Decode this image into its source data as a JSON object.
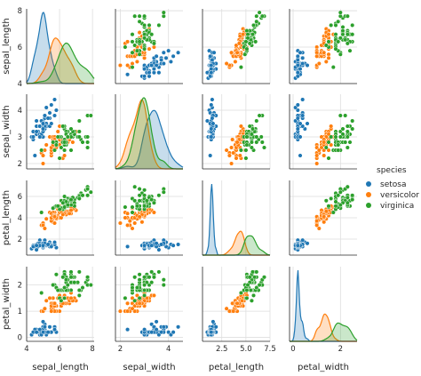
{
  "chart_data": {
    "type": "scatter",
    "title": "",
    "variables": [
      "sepal_length",
      "sepal_width",
      "petal_length",
      "petal_width"
    ],
    "hue": "species",
    "grid": true,
    "diag_kind": "kde",
    "axis_ranges": {
      "sepal_length": [
        4,
        8.1
      ],
      "sepal_width": [
        1.8,
        4.6
      ],
      "petal_length": [
        0.5,
        7.5
      ],
      "petal_width": [
        -0.15,
        2.7
      ]
    },
    "ticks": {
      "sepal_length": [
        "4",
        "6",
        "8"
      ],
      "sepal_width": [
        "2",
        "3",
        "4"
      ],
      "petal_length": [
        "2",
        "4",
        "6"
      ],
      "petal_width": [
        "0",
        "1",
        "2"
      ]
    },
    "x_ticks": {
      "sepal_length": [
        "4",
        "6",
        "8"
      ],
      "sepal_width": [
        "2",
        "4"
      ],
      "petal_length": [
        "2.5",
        "5.0",
        "7.5"
      ],
      "petal_width": [
        "0",
        "2"
      ]
    },
    "legend": {
      "title": "species",
      "placement": "right",
      "entries": [
        {
          "name": "setosa",
          "color": "#1f77b4"
        },
        {
          "name": "versicolor",
          "color": "#ff7f0e"
        },
        {
          "name": "virginica",
          "color": "#2ca02c"
        }
      ]
    },
    "series": [
      {
        "name": "setosa",
        "color": "#1f77b4",
        "points": [
          [
            5.1,
            3.5,
            1.4,
            0.2
          ],
          [
            4.9,
            3.0,
            1.4,
            0.2
          ],
          [
            4.7,
            3.2,
            1.3,
            0.2
          ],
          [
            4.6,
            3.1,
            1.5,
            0.2
          ],
          [
            5.0,
            3.6,
            1.4,
            0.2
          ],
          [
            5.4,
            3.9,
            1.7,
            0.4
          ],
          [
            4.6,
            3.4,
            1.4,
            0.3
          ],
          [
            5.0,
            3.4,
            1.5,
            0.2
          ],
          [
            4.4,
            2.9,
            1.4,
            0.2
          ],
          [
            4.9,
            3.1,
            1.5,
            0.1
          ],
          [
            5.4,
            3.7,
            1.5,
            0.2
          ],
          [
            4.8,
            3.4,
            1.6,
            0.2
          ],
          [
            4.8,
            3.0,
            1.4,
            0.1
          ],
          [
            4.3,
            3.0,
            1.1,
            0.1
          ],
          [
            5.8,
            4.0,
            1.2,
            0.2
          ],
          [
            5.7,
            4.4,
            1.5,
            0.4
          ],
          [
            5.4,
            3.9,
            1.3,
            0.4
          ],
          [
            5.1,
            3.5,
            1.4,
            0.3
          ],
          [
            5.7,
            3.8,
            1.7,
            0.3
          ],
          [
            5.1,
            3.8,
            1.5,
            0.3
          ],
          [
            5.4,
            3.4,
            1.7,
            0.2
          ],
          [
            5.1,
            3.7,
            1.5,
            0.4
          ],
          [
            4.6,
            3.6,
            1.0,
            0.2
          ],
          [
            5.1,
            3.3,
            1.7,
            0.5
          ],
          [
            4.8,
            3.4,
            1.9,
            0.2
          ],
          [
            5.0,
            3.0,
            1.6,
            0.2
          ],
          [
            5.0,
            3.4,
            1.6,
            0.4
          ],
          [
            5.2,
            3.5,
            1.5,
            0.2
          ],
          [
            5.2,
            3.4,
            1.4,
            0.2
          ],
          [
            4.7,
            3.2,
            1.6,
            0.2
          ],
          [
            4.8,
            3.1,
            1.6,
            0.2
          ],
          [
            5.4,
            3.4,
            1.5,
            0.4
          ],
          [
            5.2,
            4.1,
            1.5,
            0.1
          ],
          [
            5.5,
            4.2,
            1.4,
            0.2
          ],
          [
            4.9,
            3.1,
            1.5,
            0.2
          ],
          [
            5.0,
            3.2,
            1.2,
            0.2
          ],
          [
            5.5,
            3.5,
            1.3,
            0.2
          ],
          [
            4.9,
            3.6,
            1.4,
            0.1
          ],
          [
            4.4,
            3.0,
            1.3,
            0.2
          ],
          [
            5.1,
            3.4,
            1.5,
            0.2
          ],
          [
            5.0,
            3.5,
            1.3,
            0.3
          ],
          [
            4.5,
            2.3,
            1.3,
            0.3
          ],
          [
            4.4,
            3.2,
            1.3,
            0.2
          ],
          [
            5.0,
            3.5,
            1.6,
            0.6
          ],
          [
            5.1,
            3.8,
            1.9,
            0.4
          ],
          [
            4.8,
            3.0,
            1.4,
            0.3
          ],
          [
            5.1,
            3.8,
            1.6,
            0.2
          ],
          [
            4.6,
            3.2,
            1.4,
            0.2
          ],
          [
            5.3,
            3.7,
            1.5,
            0.2
          ],
          [
            5.0,
            3.3,
            1.4,
            0.2
          ]
        ]
      },
      {
        "name": "versicolor",
        "color": "#ff7f0e",
        "points": [
          [
            7.0,
            3.2,
            4.7,
            1.4
          ],
          [
            6.4,
            3.2,
            4.5,
            1.5
          ],
          [
            6.9,
            3.1,
            4.9,
            1.5
          ],
          [
            5.5,
            2.3,
            4.0,
            1.3
          ],
          [
            6.5,
            2.8,
            4.6,
            1.5
          ],
          [
            5.7,
            2.8,
            4.5,
            1.3
          ],
          [
            6.3,
            3.3,
            4.7,
            1.6
          ],
          [
            4.9,
            2.4,
            3.3,
            1.0
          ],
          [
            6.6,
            2.9,
            4.6,
            1.3
          ],
          [
            5.2,
            2.7,
            3.9,
            1.4
          ],
          [
            5.0,
            2.0,
            3.5,
            1.0
          ],
          [
            5.9,
            3.0,
            4.2,
            1.5
          ],
          [
            6.0,
            2.2,
            4.0,
            1.0
          ],
          [
            6.1,
            2.9,
            4.7,
            1.4
          ],
          [
            5.6,
            2.9,
            3.6,
            1.3
          ],
          [
            6.7,
            3.1,
            4.4,
            1.4
          ],
          [
            5.6,
            3.0,
            4.5,
            1.5
          ],
          [
            5.8,
            2.7,
            4.1,
            1.0
          ],
          [
            6.2,
            2.2,
            4.5,
            1.5
          ],
          [
            5.6,
            2.5,
            3.9,
            1.1
          ],
          [
            5.9,
            3.2,
            4.8,
            1.8
          ],
          [
            6.1,
            2.8,
            4.0,
            1.3
          ],
          [
            6.3,
            2.5,
            4.9,
            1.5
          ],
          [
            6.1,
            2.8,
            4.7,
            1.2
          ],
          [
            6.4,
            2.9,
            4.3,
            1.3
          ],
          [
            6.6,
            3.0,
            4.4,
            1.4
          ],
          [
            6.8,
            2.8,
            4.8,
            1.4
          ],
          [
            6.7,
            3.0,
            5.0,
            1.7
          ],
          [
            6.0,
            2.9,
            4.5,
            1.5
          ],
          [
            5.7,
            2.6,
            3.5,
            1.0
          ],
          [
            5.5,
            2.4,
            3.8,
            1.1
          ],
          [
            5.5,
            2.4,
            3.7,
            1.0
          ],
          [
            5.8,
            2.7,
            3.9,
            1.2
          ],
          [
            6.0,
            2.7,
            5.1,
            1.6
          ],
          [
            5.4,
            3.0,
            4.5,
            1.5
          ],
          [
            6.0,
            3.4,
            4.5,
            1.6
          ],
          [
            6.7,
            3.1,
            4.7,
            1.5
          ],
          [
            6.3,
            2.3,
            4.4,
            1.3
          ],
          [
            5.6,
            3.0,
            4.1,
            1.3
          ],
          [
            5.5,
            2.5,
            4.0,
            1.3
          ],
          [
            5.5,
            2.6,
            4.4,
            1.2
          ],
          [
            6.1,
            3.0,
            4.6,
            1.4
          ],
          [
            5.8,
            2.6,
            4.0,
            1.2
          ],
          [
            5.0,
            2.3,
            3.3,
            1.0
          ],
          [
            5.6,
            2.7,
            4.2,
            1.3
          ],
          [
            5.7,
            3.0,
            4.2,
            1.2
          ],
          [
            5.7,
            2.9,
            4.2,
            1.3
          ],
          [
            6.2,
            2.9,
            4.3,
            1.3
          ],
          [
            5.1,
            2.5,
            3.0,
            1.1
          ],
          [
            5.7,
            2.8,
            4.1,
            1.3
          ]
        ]
      },
      {
        "name": "virginica",
        "color": "#2ca02c",
        "points": [
          [
            6.3,
            3.3,
            6.0,
            2.5
          ],
          [
            5.8,
            2.7,
            5.1,
            1.9
          ],
          [
            7.1,
            3.0,
            5.9,
            2.1
          ],
          [
            6.3,
            2.9,
            5.6,
            1.8
          ],
          [
            6.5,
            3.0,
            5.8,
            2.2
          ],
          [
            7.6,
            3.0,
            6.6,
            2.1
          ],
          [
            4.9,
            2.5,
            4.5,
            1.7
          ],
          [
            7.3,
            2.9,
            6.3,
            1.8
          ],
          [
            6.7,
            2.5,
            5.8,
            1.8
          ],
          [
            7.2,
            3.6,
            6.1,
            2.5
          ],
          [
            6.5,
            3.2,
            5.1,
            2.0
          ],
          [
            6.4,
            2.7,
            5.3,
            1.9
          ],
          [
            6.8,
            3.0,
            5.5,
            2.1
          ],
          [
            5.7,
            2.5,
            5.0,
            2.0
          ],
          [
            5.8,
            2.8,
            5.1,
            2.4
          ],
          [
            6.4,
            3.2,
            5.3,
            2.3
          ],
          [
            6.5,
            3.0,
            5.5,
            1.8
          ],
          [
            7.7,
            3.8,
            6.7,
            2.2
          ],
          [
            7.7,
            2.6,
            6.9,
            2.3
          ],
          [
            6.0,
            2.2,
            5.0,
            1.5
          ],
          [
            6.9,
            3.2,
            5.7,
            2.3
          ],
          [
            5.6,
            2.8,
            4.9,
            2.0
          ],
          [
            7.7,
            2.8,
            6.7,
            2.0
          ],
          [
            6.3,
            2.7,
            4.9,
            1.8
          ],
          [
            6.7,
            3.3,
            5.7,
            2.1
          ],
          [
            7.2,
            3.2,
            6.0,
            1.8
          ],
          [
            6.2,
            2.8,
            4.8,
            1.8
          ],
          [
            6.1,
            3.0,
            4.9,
            1.8
          ],
          [
            6.4,
            2.8,
            5.6,
            2.1
          ],
          [
            7.2,
            3.0,
            5.8,
            1.6
          ],
          [
            7.4,
            2.8,
            6.1,
            1.9
          ],
          [
            7.9,
            3.8,
            6.4,
            2.0
          ],
          [
            6.4,
            2.8,
            5.6,
            2.2
          ],
          [
            6.3,
            2.8,
            5.1,
            1.5
          ],
          [
            6.1,
            2.6,
            5.6,
            1.4
          ],
          [
            7.7,
            3.0,
            6.1,
            2.3
          ],
          [
            6.3,
            3.4,
            5.6,
            2.4
          ],
          [
            6.4,
            3.1,
            5.5,
            1.8
          ],
          [
            6.0,
            3.0,
            4.8,
            1.8
          ],
          [
            6.9,
            3.1,
            5.4,
            2.1
          ],
          [
            6.7,
            3.1,
            5.6,
            2.4
          ],
          [
            6.9,
            3.1,
            5.1,
            2.3
          ],
          [
            5.8,
            2.7,
            5.1,
            1.9
          ],
          [
            6.8,
            3.2,
            5.9,
            2.3
          ],
          [
            6.7,
            3.3,
            5.7,
            2.5
          ],
          [
            6.7,
            3.0,
            5.2,
            2.3
          ],
          [
            6.3,
            2.5,
            5.0,
            1.9
          ],
          [
            6.5,
            3.0,
            5.2,
            2.0
          ],
          [
            6.2,
            3.4,
            5.4,
            2.3
          ],
          [
            5.9,
            3.0,
            5.1,
            1.8
          ]
        ]
      }
    ]
  }
}
